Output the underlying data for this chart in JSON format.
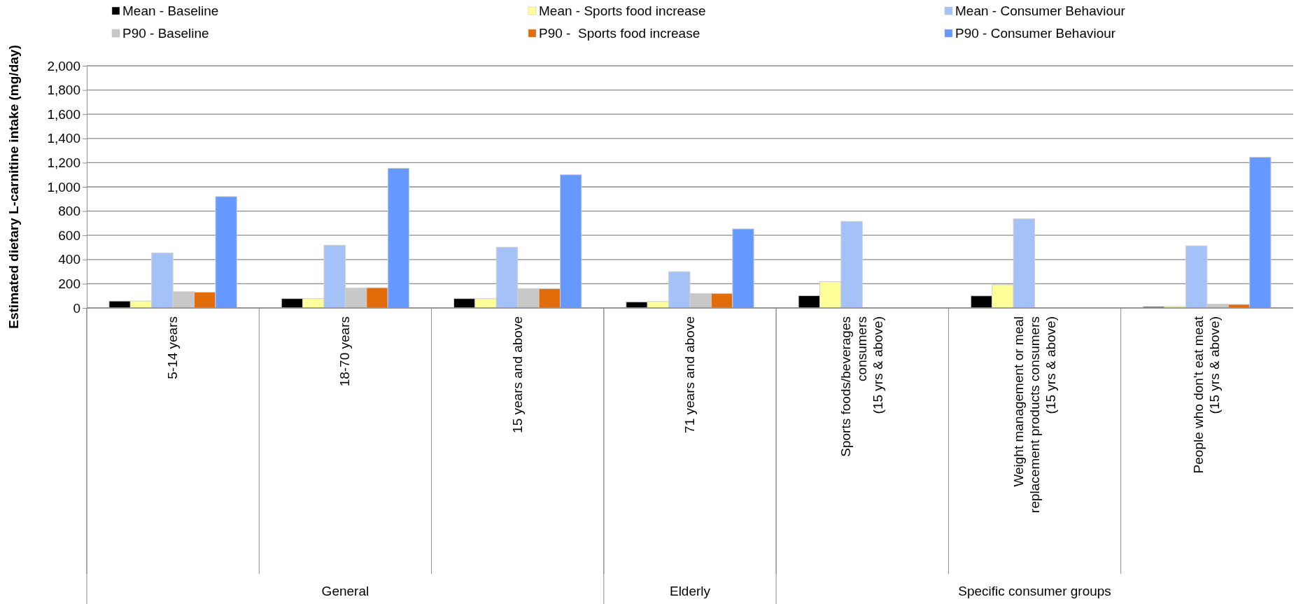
{
  "chart_data": {
    "type": "bar",
    "ylabel": "Estimated dietary L-carnitine intake (mg/day)",
    "categories": [
      "5-14 years",
      "18-70 years",
      "15 years and above",
      "71 years and above",
      "Sports foods/beverages\nconsumers\n(15 yrs & above)",
      "Weight management or meal\nreplacement products consumers\n(15 yrs & above)",
      "People who don't eat meat\n(15 yrs & above)"
    ],
    "series": [
      {
        "name": "Mean - Baseline",
        "color": "#000000",
        "values": [
          57,
          77,
          77,
          50,
          101,
          100,
          11
        ]
      },
      {
        "name": "Mean - Sports food increase",
        "color": "#ffff99",
        "values": [
          57,
          77,
          77,
          54,
          217,
          191,
          12
        ]
      },
      {
        "name": "Mean - Consumer Behaviour",
        "color": "#a4c2f8",
        "values": [
          455,
          518,
          502,
          300,
          715,
          736,
          513
        ]
      },
      {
        "name": "P90 - Baseline",
        "color": "#c8c8c8",
        "values": [
          134,
          164,
          160,
          119,
          null,
          null,
          32
        ]
      },
      {
        "name": "P90 -  Sports food increase",
        "color": "#e36c0a",
        "values": [
          130,
          167,
          160,
          120,
          null,
          null,
          29
        ]
      },
      {
        "name": "P90 - Consumer Behaviour",
        "color": "#6699ff",
        "values": [
          920,
          1154,
          1100,
          653,
          null,
          null,
          1245
        ]
      }
    ],
    "ylim": [
      0,
      2000
    ],
    "yticks": [
      {
        "value": 0,
        "label": "0"
      },
      {
        "value": 200,
        "label": "200"
      },
      {
        "value": 400,
        "label": "400"
      },
      {
        "value": 600,
        "label": "600"
      },
      {
        "value": 800,
        "label": "800"
      },
      {
        "value": 1000,
        "label": "1,000"
      },
      {
        "value": 1200,
        "label": "1,200"
      },
      {
        "value": 1400,
        "label": "1,400"
      },
      {
        "value": 1600,
        "label": "1,600"
      },
      {
        "value": 1800,
        "label": "1,800"
      },
      {
        "value": 2000,
        "label": "2,000"
      }
    ],
    "grid": "y",
    "legend": "top",
    "annotations": [
      "General",
      "Elderly",
      "Specific consumer groups"
    ]
  }
}
